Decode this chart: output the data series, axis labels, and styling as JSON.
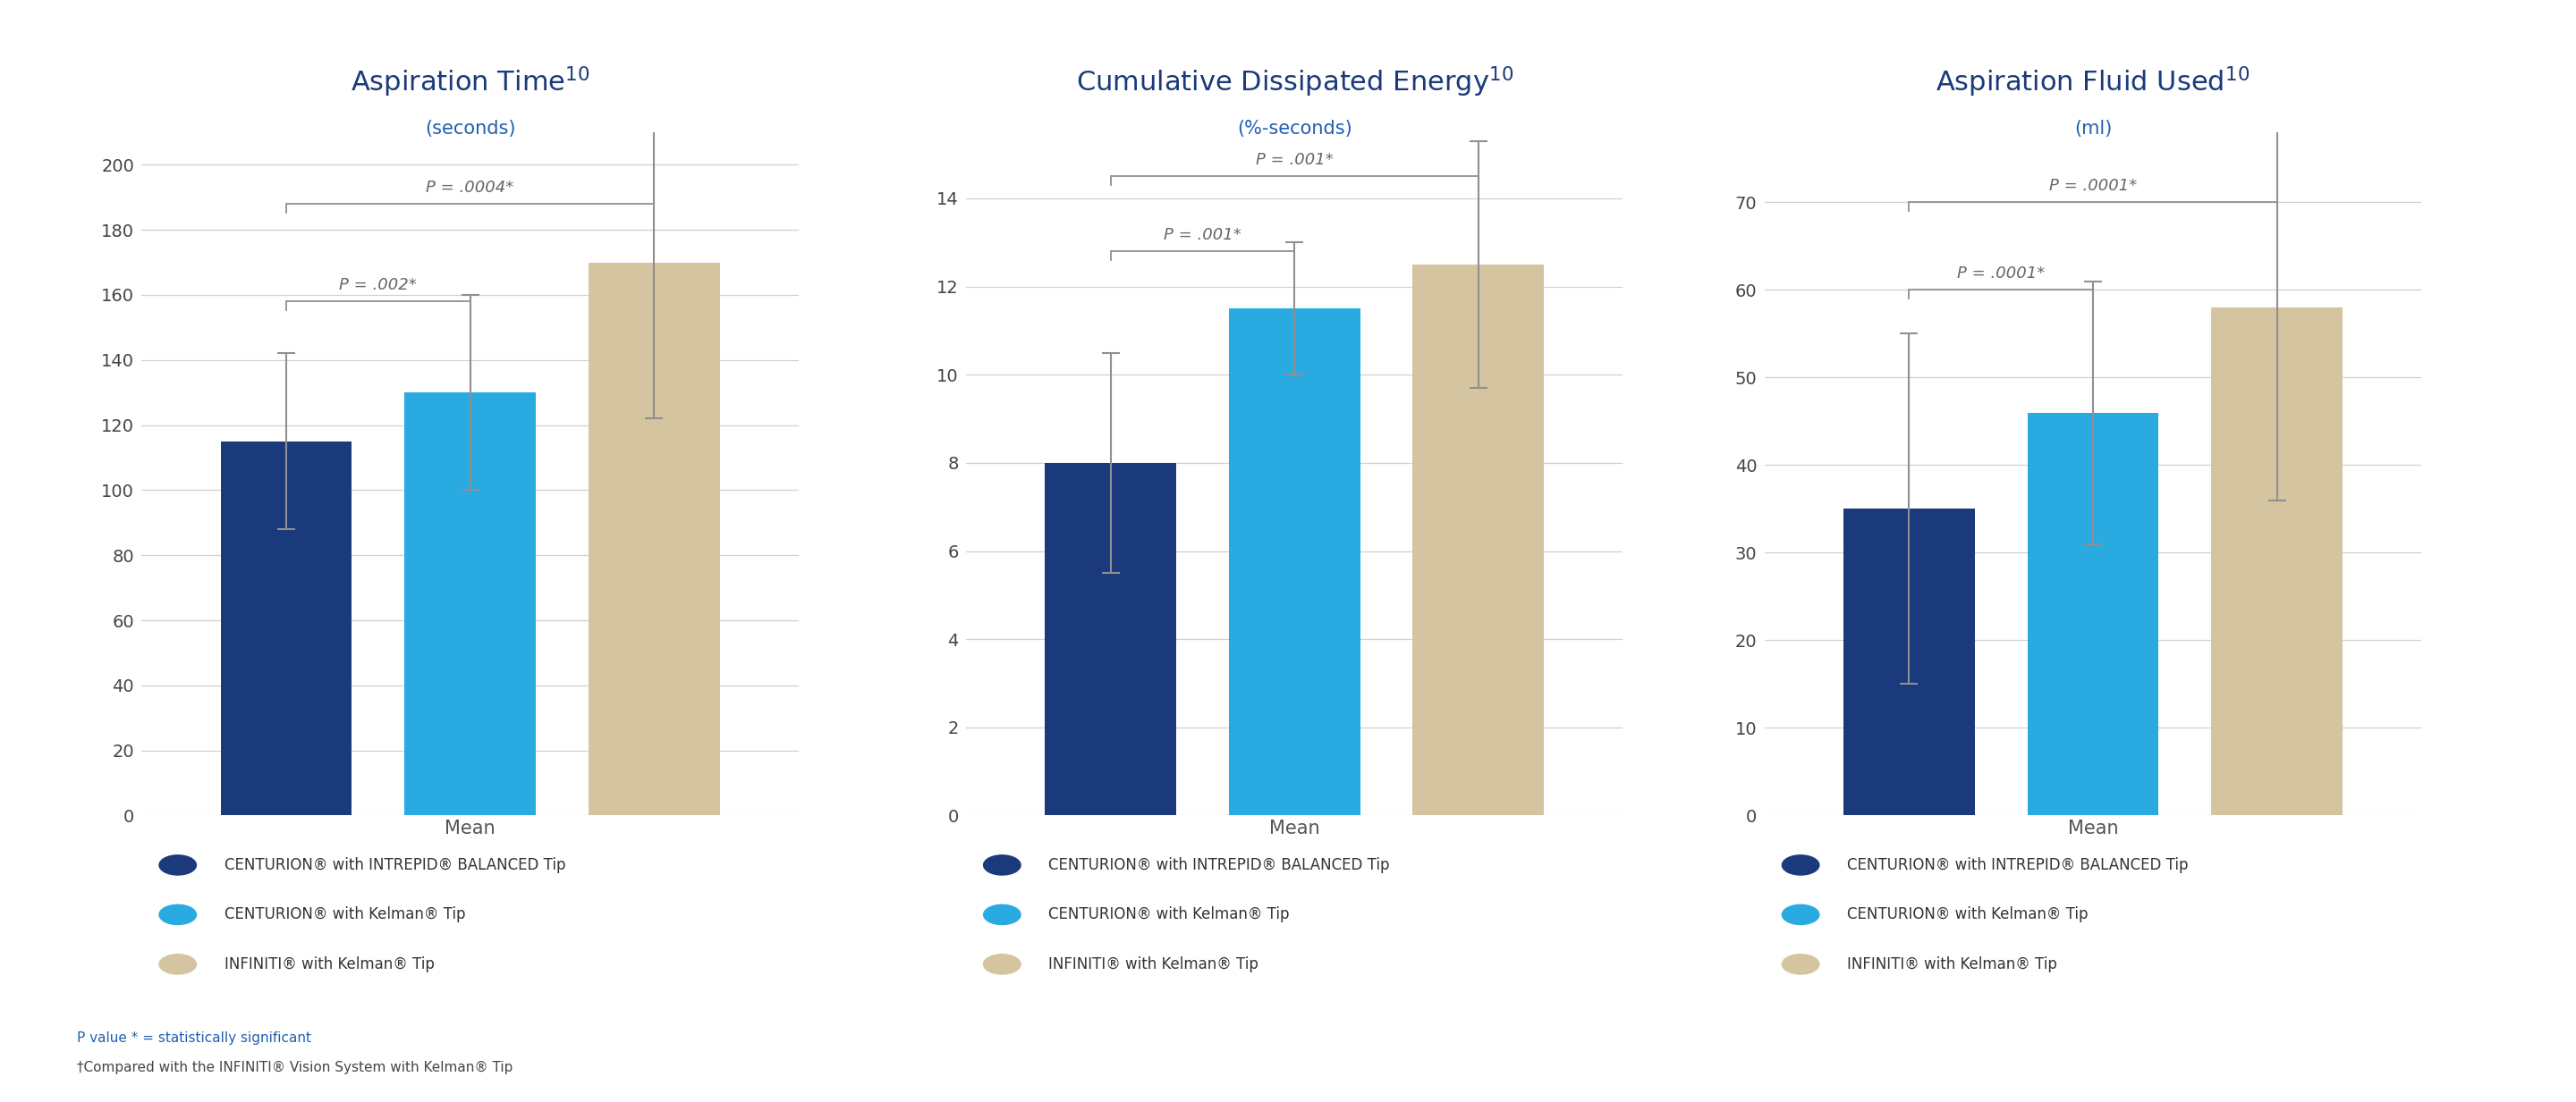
{
  "charts": [
    {
      "title": "Aspiration Time",
      "superscript": "10",
      "subtitle": "(seconds)",
      "ylim": [
        0,
        210
      ],
      "yticks": [
        0,
        20,
        40,
        60,
        80,
        100,
        120,
        140,
        160,
        180,
        200
      ],
      "xlabel": "Mean",
      "values": [
        115,
        130,
        170
      ],
      "errors": [
        27,
        30,
        48
      ],
      "pvalues": [
        {
          "text": "P = .002*",
          "bar1": 0,
          "bar2": 1,
          "y": 158
        },
        {
          "text": "P = .0004*",
          "bar1": 0,
          "bar2": 2,
          "y": 188
        }
      ]
    },
    {
      "title": "Cumulative Dissipated Energy",
      "superscript": "10",
      "subtitle": "(%-seconds)",
      "ylim": [
        0,
        15.5
      ],
      "yticks": [
        0,
        2,
        4,
        6,
        8,
        10,
        12,
        14
      ],
      "xlabel": "Mean",
      "values": [
        8.0,
        11.5,
        12.5
      ],
      "errors": [
        2.5,
        1.5,
        2.8
      ],
      "pvalues": [
        {
          "text": "P = .001*",
          "bar1": 0,
          "bar2": 1,
          "y": 12.8
        },
        {
          "text": "P = .001*",
          "bar1": 0,
          "bar2": 2,
          "y": 14.5
        }
      ]
    },
    {
      "title": "Aspiration Fluid Used",
      "superscript": "10",
      "subtitle": "(ml)",
      "ylim": [
        0,
        78
      ],
      "yticks": [
        0,
        10,
        20,
        30,
        40,
        50,
        60,
        70
      ],
      "xlabel": "Mean",
      "values": [
        35,
        46,
        58
      ],
      "errors": [
        20,
        15,
        22
      ],
      "pvalues": [
        {
          "text": "P = .0001*",
          "bar1": 0,
          "bar2": 1,
          "y": 60
        },
        {
          "text": "P = .0001*",
          "bar1": 0,
          "bar2": 2,
          "y": 70
        }
      ]
    }
  ],
  "bar_colors": [
    "#1a3a7c",
    "#29abe2",
    "#d4c4a0"
  ],
  "bar_width": 0.2,
  "error_color": "#909090",
  "grid_color": "#d0d0d0",
  "title_color": "#1a3a7c",
  "subtitle_color": "#2060b0",
  "pvalue_color": "#666666",
  "bracket_color": "#909090",
  "legend_labels": [
    "CENTURION® with INTREPID® BALANCED Tip",
    "CENTURION® with Kelman® Tip",
    "INFINITI® with Kelman® Tip"
  ],
  "footnote1": "P value * = statistically significant",
  "footnote2": "†Compared with the INFINITI® Vision System with Kelman® Tip",
  "footnote_color": "#2060b0",
  "background_color": "#ffffff"
}
